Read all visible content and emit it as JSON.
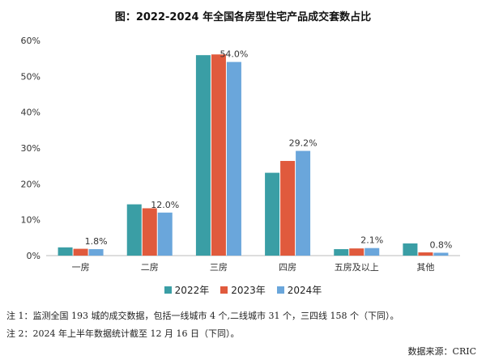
{
  "chart_data": {
    "type": "bar",
    "title": "图：2022-2024 年全国各房型住宅产品成交套数占比",
    "categories": [
      "一房",
      "二房",
      "三房",
      "四房",
      "五房及以上",
      "其他"
    ],
    "series": [
      {
        "name": "2022年",
        "color": "#3a9ea5",
        "values": [
          2.3,
          14.3,
          55.9,
          23.1,
          1.8,
          3.4
        ]
      },
      {
        "name": "2023年",
        "color": "#e05a3d",
        "values": [
          1.9,
          13.2,
          56.1,
          26.4,
          2.0,
          0.9
        ]
      },
      {
        "name": "2024年",
        "color": "#6aa6db",
        "values": [
          1.8,
          12.0,
          54.0,
          29.2,
          2.1,
          0.8
        ]
      }
    ],
    "data_labels": [
      "1.8%",
      "12.0%",
      "54.0%",
      "29.2%",
      "2.1%",
      "0.8%"
    ],
    "y_ticks": [
      "0%",
      "10%",
      "20%",
      "30%",
      "40%",
      "50%",
      "60%"
    ],
    "ylim": [
      0,
      60
    ],
    "grid": false,
    "legend": "bottom"
  },
  "notes": [
    "注 1：监测全国 193 城的成交数据，包括一线城市 4 个,二线城市 31 个，三四线 158 个（下同）。",
    "注 2：2024 年上半年数据统计截至 12 月 16 日（下同）。"
  ],
  "source": "数据来源：CRIC"
}
